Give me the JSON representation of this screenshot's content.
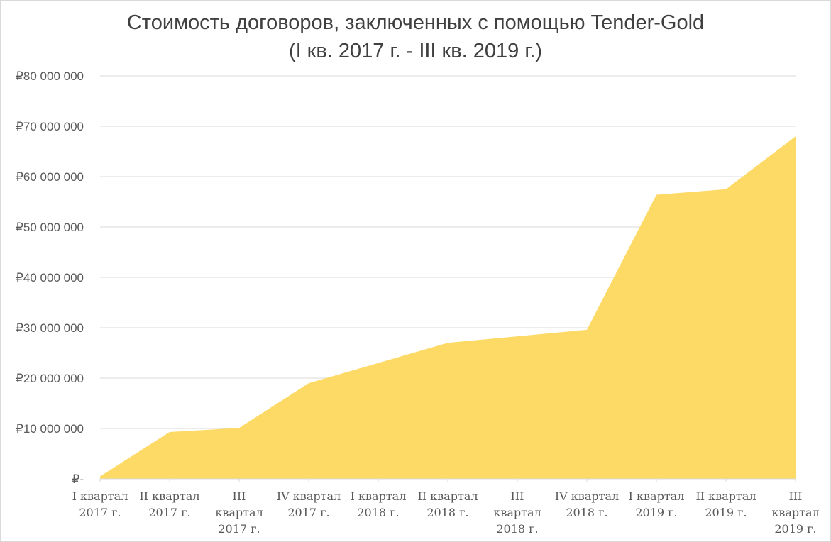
{
  "chart_data": {
    "type": "area",
    "title": "Стоимость договоров, заключенных с помощью Tender-Gold",
    "subtitle": "(I кв. 2017 г. - III кв. 2019 г.)",
    "xlabel": "",
    "ylabel": "",
    "categories": [
      [
        "I квартал",
        "2017 г."
      ],
      [
        "II квартал",
        "2017 г."
      ],
      [
        "III",
        "квартал",
        "2017 г."
      ],
      [
        "IV квартал",
        "2017 г."
      ],
      [
        "I квартал",
        "2018 г."
      ],
      [
        "II квартал",
        "2018 г."
      ],
      [
        "III",
        "квартал",
        "2018 г."
      ],
      [
        "IV квартал",
        "2018 г."
      ],
      [
        "I квартал",
        "2019 г."
      ],
      [
        "II квартал",
        "2019 г."
      ],
      [
        "III",
        "квартал",
        "2019 г."
      ]
    ],
    "values": [
      500000,
      9300000,
      10100000,
      19000000,
      23000000,
      27000000,
      28300000,
      29600000,
      56400000,
      57500000,
      68000000
    ],
    "ylim": [
      0,
      80000000
    ],
    "yticks": [
      0,
      10000000,
      20000000,
      30000000,
      40000000,
      50000000,
      60000000,
      70000000,
      80000000
    ],
    "ytick_labels": [
      "₽-",
      "₽10 000 000",
      "₽20 000 000",
      "₽30 000 000",
      "₽40 000 000",
      "₽50 000 000",
      "₽60 000 000",
      "₽70 000 000",
      "₽80 000 000"
    ],
    "grid": true,
    "legend": "none",
    "colors": {
      "fill": "#FDD966",
      "grid": "#d9d9d9",
      "text": "#595959",
      "title": "#404040"
    }
  }
}
